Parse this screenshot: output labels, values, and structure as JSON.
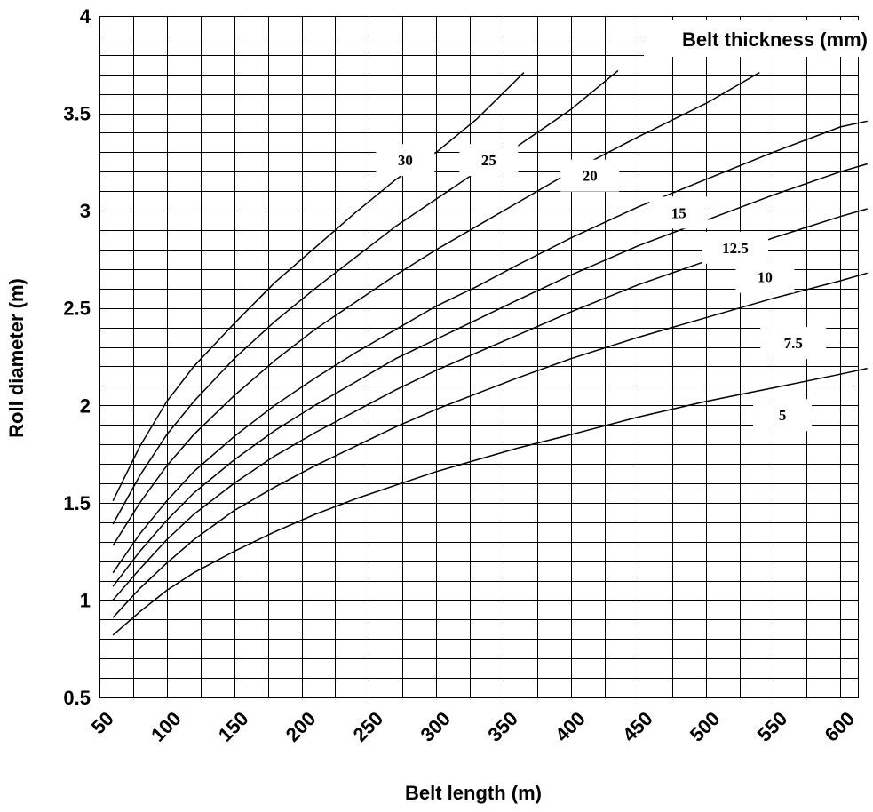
{
  "chart_data": {
    "type": "line",
    "title": "",
    "xlabel": "Belt length (m)",
    "ylabel": "Roll diameter (m)",
    "legend_title": "Belt thickness (mm)",
    "xlim": [
      50,
      620
    ],
    "ylim": [
      0.5,
      4
    ],
    "x_ticks": [
      50,
      100,
      150,
      200,
      250,
      300,
      350,
      400,
      450,
      500,
      550,
      600
    ],
    "y_ticks": [
      0.5,
      1,
      1.5,
      2,
      2.5,
      3,
      3.5,
      4
    ],
    "x_tick_labels": [
      "50",
      "100",
      "150",
      "200",
      "250",
      "300",
      "350",
      "400",
      "450",
      "500",
      "550",
      "600"
    ],
    "y_tick_labels": [
      "0.5",
      "1",
      "1.5",
      "2",
      "2.5",
      "3",
      "3.5",
      "4"
    ],
    "grid": true,
    "series": [
      {
        "name": "30",
        "label_at": [
          277,
          3.26
        ],
        "x": [
          60,
          80,
          100,
          120,
          150,
          180,
          210,
          240,
          270,
          300,
          330,
          365
        ],
        "y": [
          1.51,
          1.79,
          2.02,
          2.2,
          2.42,
          2.63,
          2.81,
          2.99,
          3.16,
          3.3,
          3.47,
          3.71
        ]
      },
      {
        "name": "25",
        "label_at": [
          339,
          3.26
        ],
        "x": [
          60,
          80,
          100,
          120,
          150,
          180,
          210,
          240,
          270,
          300,
          330,
          360,
          400,
          435
        ],
        "y": [
          1.39,
          1.64,
          1.85,
          2.02,
          2.24,
          2.43,
          2.6,
          2.76,
          2.92,
          3.06,
          3.2,
          3.33,
          3.52,
          3.72
        ]
      },
      {
        "name": "20",
        "label_at": [
          414,
          3.18
        ],
        "x": [
          60,
          80,
          100,
          120,
          150,
          180,
          210,
          240,
          270,
          300,
          330,
          360,
          400,
          450,
          500,
          540
        ],
        "y": [
          1.28,
          1.5,
          1.69,
          1.85,
          2.05,
          2.23,
          2.39,
          2.53,
          2.67,
          2.8,
          2.92,
          3.04,
          3.2,
          3.38,
          3.55,
          3.71
        ]
      },
      {
        "name": "15",
        "label_at": [
          480,
          2.99
        ],
        "x": [
          60,
          80,
          100,
          120,
          150,
          180,
          210,
          240,
          270,
          300,
          330,
          360,
          400,
          450,
          500,
          550,
          600,
          620
        ],
        "y": [
          1.14,
          1.34,
          1.51,
          1.66,
          1.84,
          2.0,
          2.14,
          2.27,
          2.39,
          2.51,
          2.61,
          2.72,
          2.86,
          3.02,
          3.16,
          3.3,
          3.43,
          3.46
        ]
      },
      {
        "name": "12.5",
        "label_at": [
          522,
          2.81
        ],
        "x": [
          60,
          80,
          100,
          120,
          150,
          180,
          210,
          240,
          270,
          300,
          330,
          360,
          400,
          450,
          500,
          550,
          600,
          620
        ],
        "y": [
          1.07,
          1.25,
          1.41,
          1.55,
          1.72,
          1.87,
          2.0,
          2.12,
          2.24,
          2.34,
          2.44,
          2.54,
          2.67,
          2.82,
          2.95,
          3.08,
          3.2,
          3.24
        ]
      },
      {
        "name": "10",
        "label_at": [
          544,
          2.66
        ],
        "x": [
          60,
          80,
          100,
          120,
          150,
          180,
          210,
          240,
          270,
          300,
          330,
          360,
          400,
          450,
          500,
          550,
          600,
          620
        ],
        "y": [
          1.0,
          1.16,
          1.31,
          1.44,
          1.6,
          1.74,
          1.86,
          1.97,
          2.08,
          2.18,
          2.27,
          2.36,
          2.48,
          2.62,
          2.74,
          2.86,
          2.97,
          3.01
        ]
      },
      {
        "name": "7.5",
        "label_at": [
          565,
          2.32
        ],
        "x": [
          60,
          80,
          100,
          120,
          150,
          180,
          210,
          240,
          270,
          300,
          330,
          360,
          400,
          450,
          500,
          550,
          600,
          620
        ],
        "y": [
          0.91,
          1.06,
          1.19,
          1.31,
          1.46,
          1.58,
          1.69,
          1.79,
          1.89,
          1.98,
          2.06,
          2.14,
          2.24,
          2.35,
          2.45,
          2.55,
          2.64,
          2.68
        ]
      },
      {
        "name": "5",
        "label_at": [
          557,
          1.95
        ],
        "x": [
          60,
          80,
          100,
          120,
          150,
          180,
          210,
          240,
          270,
          300,
          330,
          360,
          400,
          450,
          500,
          550,
          600,
          620
        ],
        "y": [
          0.82,
          0.94,
          1.05,
          1.14,
          1.25,
          1.35,
          1.44,
          1.52,
          1.59,
          1.66,
          1.72,
          1.78,
          1.85,
          1.94,
          2.02,
          2.09,
          2.16,
          2.19
        ]
      }
    ]
  }
}
